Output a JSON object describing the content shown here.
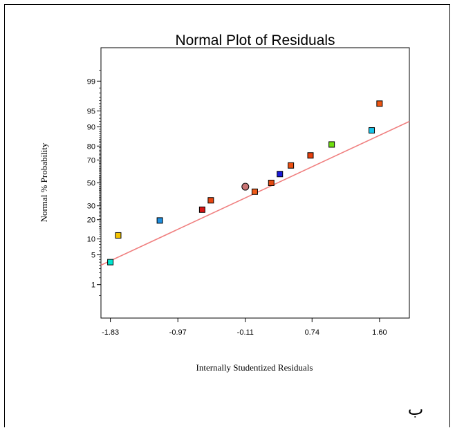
{
  "chart_data": {
    "type": "scatter",
    "title": "Normal Plot of Residuals",
    "xlabel": "Internally Studentized Residuals",
    "ylabel": "Normal % Probability",
    "x_ticks": [
      -1.83,
      -0.97,
      -0.11,
      0.74,
      1.6
    ],
    "x_tick_labels": [
      "-1.83",
      "-0.97",
      "-0.11",
      "0.74",
      "1.60"
    ],
    "xlim": [
      -1.95,
      1.98
    ],
    "y_scale": "normal-probability",
    "y_ticks": [
      1,
      5,
      10,
      20,
      30,
      50,
      70,
      80,
      90,
      95,
      99
    ],
    "y_tick_labels": [
      "1",
      "5",
      "10",
      "20",
      "30",
      "50",
      "70",
      "80",
      "90",
      "95",
      "99"
    ],
    "ylim": [
      0.1,
      99.9
    ],
    "grid": false,
    "points": [
      {
        "x": -1.83,
        "y": 3.5,
        "color": "#00e5d0",
        "marker": "square"
      },
      {
        "x": -1.73,
        "y": 11.5,
        "color": "#f5c400",
        "marker": "square"
      },
      {
        "x": -1.2,
        "y": 19.5,
        "color": "#1e8fe0",
        "marker": "square"
      },
      {
        "x": -0.66,
        "y": 27.0,
        "color": "#d71414",
        "marker": "square"
      },
      {
        "x": -0.55,
        "y": 34.5,
        "color": "#e84610",
        "marker": "square"
      },
      {
        "x": -0.11,
        "y": 46.5,
        "color": "#c87474",
        "marker": "circle"
      },
      {
        "x": 0.01,
        "y": 42.0,
        "color": "#ef5a18",
        "marker": "square"
      },
      {
        "x": 0.22,
        "y": 50.0,
        "color": "#e24a12",
        "marker": "square"
      },
      {
        "x": 0.33,
        "y": 58.0,
        "color": "#1a1ad8",
        "marker": "square"
      },
      {
        "x": 0.47,
        "y": 65.5,
        "color": "#ec5012",
        "marker": "square"
      },
      {
        "x": 0.72,
        "y": 73.5,
        "color": "#e8400e",
        "marker": "square"
      },
      {
        "x": 0.99,
        "y": 81.0,
        "color": "#70e010",
        "marker": "square"
      },
      {
        "x": 1.5,
        "y": 88.5,
        "color": "#18c4e8",
        "marker": "square"
      },
      {
        "x": 1.6,
        "y": 96.5,
        "color": "#ee5512",
        "marker": "square"
      }
    ],
    "fit_line": {
      "color": "#f08080",
      "points": [
        [
          -1.95,
          3.0
        ],
        [
          1.98,
          92.0
        ]
      ]
    }
  },
  "corner_label": "ب"
}
